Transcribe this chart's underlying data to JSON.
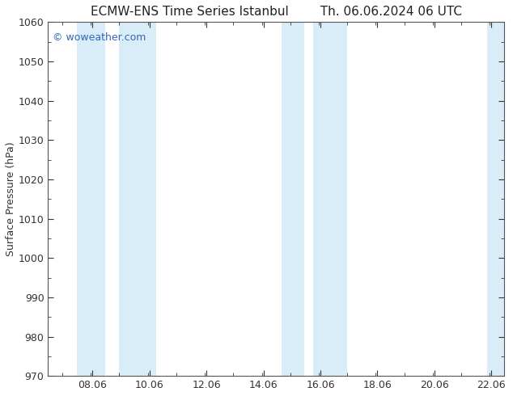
{
  "title_left": "ECMW-ENS Time Series Istanbul",
  "title_right": "Th. 06.06.2024 06 UTC",
  "ylabel": "Surface Pressure (hPa)",
  "ylim": [
    970,
    1060
  ],
  "yticks": [
    970,
    980,
    990,
    1000,
    1010,
    1020,
    1030,
    1040,
    1050,
    1060
  ],
  "xlim": [
    6.5,
    22.5
  ],
  "xticks": [
    8.06,
    10.06,
    12.06,
    14.06,
    16.06,
    18.06,
    20.06,
    22.06
  ],
  "xlabel_labels": [
    "08.06",
    "10.06",
    "12.06",
    "14.06",
    "16.06",
    "18.06",
    "20.06",
    "22.06"
  ],
  "shaded_bands": [
    {
      "xmin": 7.5,
      "xmax": 8.5
    },
    {
      "xmin": 9.0,
      "xmax": 10.3
    },
    {
      "xmin": 14.7,
      "xmax": 15.5
    },
    {
      "xmin": 15.8,
      "xmax": 17.0
    },
    {
      "xmin": 21.9,
      "xmax": 22.5
    }
  ],
  "shade_color": "#d8edf8",
  "background_color": "#ffffff",
  "watermark_text": "© woweather.com",
  "watermark_color": "#3366bb",
  "title_color": "#222222",
  "spine_color": "#555555",
  "tick_color": "#333333",
  "title_fontsize": 11,
  "ylabel_fontsize": 9,
  "tick_fontsize": 9
}
